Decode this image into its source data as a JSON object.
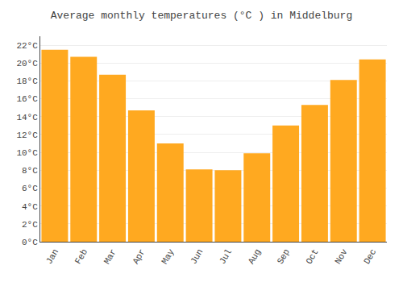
{
  "chart_data": {
    "type": "bar",
    "title": "Average monthly temperatures (°C ) in Middelburg",
    "categories": [
      "Jan",
      "Feb",
      "Mar",
      "Apr",
      "May",
      "Jun",
      "Jul",
      "Aug",
      "Sep",
      "Oct",
      "Nov",
      "Dec"
    ],
    "values": [
      21.5,
      20.7,
      18.7,
      14.7,
      11.0,
      8.1,
      8.0,
      9.9,
      13.0,
      15.3,
      18.1,
      20.4
    ],
    "color": "#FFA920",
    "ylim": [
      0,
      23
    ],
    "yticks": [
      {
        "value": 0,
        "label": "0°C"
      },
      {
        "value": 2,
        "label": "2°C"
      },
      {
        "value": 4,
        "label": "4°C"
      },
      {
        "value": 6,
        "label": "6°C"
      },
      {
        "value": 8,
        "label": "8°C"
      },
      {
        "value": 10,
        "label": "10°C"
      },
      {
        "value": 12,
        "label": "12°C"
      },
      {
        "value": 14,
        "label": "14°C"
      },
      {
        "value": 16,
        "label": "16°C"
      },
      {
        "value": 18,
        "label": "18°C"
      },
      {
        "value": 20,
        "label": "20°C"
      },
      {
        "value": 22,
        "label": "22°C"
      }
    ],
    "grid": true
  }
}
